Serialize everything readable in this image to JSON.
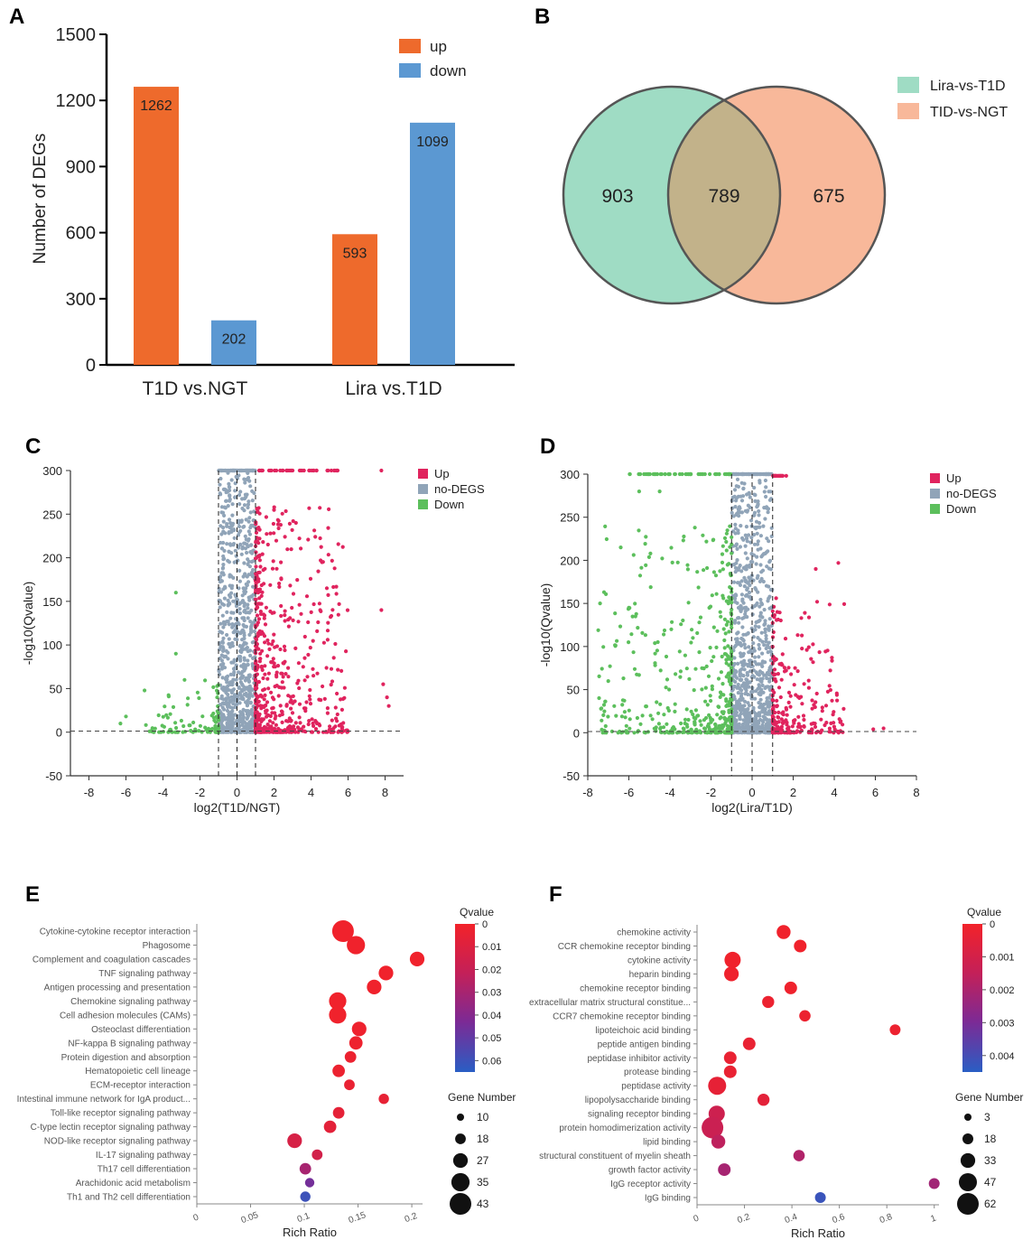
{
  "panel_labels": [
    "A",
    "B",
    "C",
    "D",
    "E",
    "F"
  ],
  "chart_data": [
    {
      "panel": "A",
      "type": "bar",
      "ylabel": "Number of DEGs",
      "ylim": [
        0,
        1500
      ],
      "yticks": [
        "0",
        "300",
        "600",
        "900",
        "1200",
        "1500"
      ],
      "categories": [
        "T1D vs.NGT",
        "Lira vs.T1D"
      ],
      "series": [
        {
          "name": "up",
          "color": "#ee6a2c",
          "values": [
            1262,
            593
          ]
        },
        {
          "name": "down",
          "color": "#5b98d2",
          "values": [
            202,
            1099
          ]
        }
      ],
      "legend": "top-right"
    },
    {
      "panel": "B",
      "type": "venn",
      "sets": [
        {
          "name": "Lira-vs-T1D",
          "color": "#9fdcc4",
          "only": "903"
        },
        {
          "name": "TID-vs-NGT",
          "color": "#f8b89a",
          "only": "675"
        }
      ],
      "intersection": "789",
      "overlap_color": "#c2b28a"
    },
    {
      "panel": "C",
      "type": "scatter",
      "xlabel": "log2(T1D/NGT)",
      "ylabel": "-log10(Qvalue)",
      "xlim": [
        -9,
        9
      ],
      "ylim": [
        -50,
        300
      ],
      "xticks": [
        "-8",
        "-6",
        "-4",
        "-2",
        "0",
        "2",
        "4",
        "6",
        "8"
      ],
      "yticks": [
        "-50",
        "0",
        "50",
        "100",
        "150",
        "200",
        "250",
        "300"
      ],
      "thresholds_x": [
        -1,
        0,
        1
      ],
      "threshold_y": 1.3,
      "legend": [
        {
          "name": "Up",
          "color": "#e0245e"
        },
        {
          "name": "no-DEGS",
          "color": "#90a4b8"
        },
        {
          "name": "Down",
          "color": "#5cbf5c"
        }
      ]
    },
    {
      "panel": "D",
      "type": "scatter",
      "xlabel": "log2(Lira/T1D)",
      "ylabel": "-log10(Qvalue)",
      "xlim": [
        -8,
        8
      ],
      "ylim": [
        -50,
        300
      ],
      "xticks": [
        "-8",
        "-6",
        "-4",
        "-2",
        "0",
        "2",
        "4",
        "6",
        "8"
      ],
      "yticks": [
        "-50",
        "0",
        "50",
        "100",
        "150",
        "200",
        "250",
        "300"
      ],
      "thresholds_x": [
        -1,
        0,
        1
      ],
      "threshold_y": 1.3,
      "legend": [
        {
          "name": "Up",
          "color": "#e0245e"
        },
        {
          "name": "no-DEGS",
          "color": "#90a4b8"
        },
        {
          "name": "Down",
          "color": "#5cbf5c"
        }
      ]
    },
    {
      "panel": "E",
      "type": "bubble",
      "xlabel": "Rich Ratio",
      "xlim": [
        0,
        0.21
      ],
      "xticks": [
        "0",
        "0.05",
        "0.1",
        "0.15",
        "0.2"
      ],
      "color_title": "Qvalue",
      "color_range": [
        0,
        0.065
      ],
      "color_ticks": [
        "0",
        "0.01",
        "0.02",
        "0.03",
        "0.04",
        "0.05",
        "0.06"
      ],
      "size_title": "Gene Number",
      "size_legend": [
        "10",
        "18",
        "27",
        "35",
        "43"
      ],
      "terms": [
        {
          "label": "Cytokine-cytokine receptor interaction",
          "x": 0.136,
          "q": 0.001,
          "n": 43
        },
        {
          "label": "Phagosome",
          "x": 0.148,
          "q": 0.001,
          "n": 35
        },
        {
          "label": "Complement and coagulation cascades",
          "x": 0.205,
          "q": 0.001,
          "n": 27
        },
        {
          "label": "TNF signaling pathway",
          "x": 0.176,
          "q": 0.001,
          "n": 27
        },
        {
          "label": "Antigen processing and presentation",
          "x": 0.165,
          "q": 0.001,
          "n": 27
        },
        {
          "label": "Chemokine signaling pathway",
          "x": 0.131,
          "q": 0.001,
          "n": 33
        },
        {
          "label": "Cell adhesion molecules (CAMs)",
          "x": 0.131,
          "q": 0.001,
          "n": 33
        },
        {
          "label": "Osteoclast differentiation",
          "x": 0.151,
          "q": 0.002,
          "n": 27
        },
        {
          "label": "NF-kappa B signaling pathway",
          "x": 0.148,
          "q": 0.002,
          "n": 24
        },
        {
          "label": "Protein digestion and absorption",
          "x": 0.143,
          "q": 0.003,
          "n": 20
        },
        {
          "label": "Hematopoietic cell lineage",
          "x": 0.132,
          "q": 0.003,
          "n": 22
        },
        {
          "label": "ECM-receptor interaction",
          "x": 0.142,
          "q": 0.004,
          "n": 18
        },
        {
          "label": "Intestinal immune network for IgA product...",
          "x": 0.174,
          "q": 0.005,
          "n": 17
        },
        {
          "label": "Toll-like receptor signaling pathway",
          "x": 0.132,
          "q": 0.006,
          "n": 20
        },
        {
          "label": "C-type lectin receptor signaling pathway",
          "x": 0.124,
          "q": 0.007,
          "n": 22
        },
        {
          "label": "NOD-like receptor signaling pathway",
          "x": 0.091,
          "q": 0.013,
          "n": 27
        },
        {
          "label": "IL-17 signaling pathway",
          "x": 0.112,
          "q": 0.015,
          "n": 18
        },
        {
          "label": "Th17 cell differentiation",
          "x": 0.101,
          "q": 0.03,
          "n": 20
        },
        {
          "label": "Arachidonic acid metabolism",
          "x": 0.105,
          "q": 0.045,
          "n": 15
        },
        {
          "label": "Th1 and Th2 cell differentiation",
          "x": 0.101,
          "q": 0.06,
          "n": 17
        }
      ]
    },
    {
      "panel": "F",
      "type": "bubble",
      "xlabel": "Rich Ratio",
      "xlim": [
        0,
        1.02
      ],
      "xticks": [
        "0",
        "0.2",
        "0.4",
        "0.6",
        "0.8",
        "1"
      ],
      "color_title": "Qvalue",
      "color_range": [
        0,
        0.0045
      ],
      "color_ticks": [
        "0",
        "0.001",
        "0.002",
        "0.003",
        "0.004"
      ],
      "size_title": "Gene Number",
      "size_legend": [
        "3",
        "18",
        "33",
        "47",
        "62"
      ],
      "terms": [
        {
          "label": "chemokine activity",
          "x": 0.365,
          "q": 5e-05,
          "n": 30
        },
        {
          "label": "CCR chemokine receptor binding",
          "x": 0.435,
          "q": 5e-05,
          "n": 25
        },
        {
          "label": "cytokine activity",
          "x": 0.15,
          "q": 5e-05,
          "n": 40
        },
        {
          "label": "heparin binding",
          "x": 0.145,
          "q": 0.0001,
          "n": 33
        },
        {
          "label": "chemokine receptor binding",
          "x": 0.395,
          "q": 0.0001,
          "n": 25
        },
        {
          "label": "extracellular matrix structural constitue...",
          "x": 0.3,
          "q": 0.0002,
          "n": 23
        },
        {
          "label": "CCR7 chemokine receptor binding",
          "x": 0.455,
          "q": 0.0002,
          "n": 20
        },
        {
          "label": "lipoteichoic acid binding",
          "x": 0.835,
          "q": 0.0002,
          "n": 18
        },
        {
          "label": "peptide antigen binding",
          "x": 0.22,
          "q": 0.0003,
          "n": 25
        },
        {
          "label": "peptidase inhibitor activity",
          "x": 0.14,
          "q": 0.0003,
          "n": 25
        },
        {
          "label": "protease binding",
          "x": 0.14,
          "q": 0.0003,
          "n": 25
        },
        {
          "label": "peptidase activity",
          "x": 0.085,
          "q": 0.0004,
          "n": 47
        },
        {
          "label": "lipopolysaccharide binding",
          "x": 0.28,
          "q": 0.0005,
          "n": 23
        },
        {
          "label": "signaling receptor binding",
          "x": 0.083,
          "q": 0.0012,
          "n": 40
        },
        {
          "label": "protein homodimerization activity",
          "x": 0.065,
          "q": 0.0013,
          "n": 62
        },
        {
          "label": "lipid binding",
          "x": 0.09,
          "q": 0.0016,
          "n": 30
        },
        {
          "label": "structural constituent of myelin sheath",
          "x": 0.43,
          "q": 0.0019,
          "n": 20
        },
        {
          "label": "growth factor activity",
          "x": 0.115,
          "q": 0.0021,
          "n": 25
        },
        {
          "label": "IgG receptor activity",
          "x": 1.0,
          "q": 0.0022,
          "n": 18
        },
        {
          "label": "IgG binding",
          "x": 0.52,
          "q": 0.0042,
          "n": 18
        }
      ]
    }
  ]
}
